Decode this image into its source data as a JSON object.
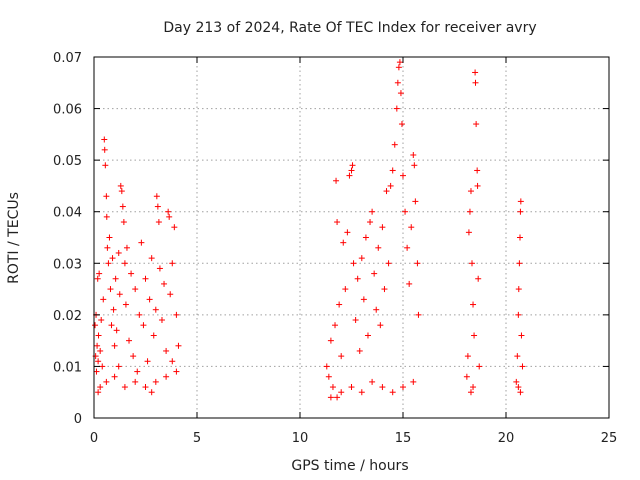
{
  "chart_data": {
    "type": "scatter",
    "title": "Day 213 of 2024, Rate Of TEC Index for receiver avry",
    "xlabel": "GPS time / hours",
    "ylabel": "ROTI / TECUs",
    "xlim": [
      0,
      25
    ],
    "ylim": [
      0,
      0.07
    ],
    "x_ticks": [
      0,
      5,
      10,
      15,
      20,
      25
    ],
    "y_ticks": [
      0,
      0.01,
      0.02,
      0.03,
      0.04,
      0.05,
      0.06,
      0.07
    ],
    "x_tick_labels": [
      "0",
      "5",
      "10",
      "15",
      "20",
      "25"
    ],
    "y_tick_labels": [
      "0",
      "0.01",
      "0.02",
      "0.03",
      "0.04",
      "0.05",
      "0.06",
      "0.07"
    ],
    "grid": true,
    "marker": "+",
    "marker_color": "#ff0000",
    "series": [
      {
        "name": "ROTI",
        "points": [
          [
            0.05,
            0.018
          ],
          [
            0.08,
            0.012
          ],
          [
            0.1,
            0.02
          ],
          [
            0.12,
            0.009
          ],
          [
            0.15,
            0.014
          ],
          [
            0.18,
            0.027
          ],
          [
            0.2,
            0.011
          ],
          [
            0.22,
            0.016
          ],
          [
            0.25,
            0.028
          ],
          [
            0.3,
            0.013
          ],
          [
            0.35,
            0.019
          ],
          [
            0.4,
            0.01
          ],
          [
            0.45,
            0.023
          ],
          [
            0.5,
            0.054
          ],
          [
            0.52,
            0.052
          ],
          [
            0.55,
            0.049
          ],
          [
            0.6,
            0.043
          ],
          [
            0.62,
            0.039
          ],
          [
            0.65,
            0.033
          ],
          [
            0.7,
            0.03
          ],
          [
            0.75,
            0.035
          ],
          [
            0.8,
            0.025
          ],
          [
            0.85,
            0.018
          ],
          [
            0.9,
            0.031
          ],
          [
            0.95,
            0.021
          ],
          [
            1.0,
            0.014
          ],
          [
            1.05,
            0.027
          ],
          [
            1.1,
            0.017
          ],
          [
            1.2,
            0.032
          ],
          [
            1.25,
            0.024
          ],
          [
            1.3,
            0.045
          ],
          [
            1.35,
            0.044
          ],
          [
            1.4,
            0.041
          ],
          [
            1.45,
            0.038
          ],
          [
            1.5,
            0.03
          ],
          [
            1.55,
            0.022
          ],
          [
            1.6,
            0.033
          ],
          [
            1.7,
            0.015
          ],
          [
            1.8,
            0.028
          ],
          [
            1.9,
            0.012
          ],
          [
            2.0,
            0.025
          ],
          [
            2.1,
            0.009
          ],
          [
            2.2,
            0.02
          ],
          [
            2.3,
            0.034
          ],
          [
            2.4,
            0.018
          ],
          [
            2.5,
            0.027
          ],
          [
            2.6,
            0.011
          ],
          [
            2.7,
            0.023
          ],
          [
            2.8,
            0.031
          ],
          [
            2.9,
            0.016
          ],
          [
            3.0,
            0.021
          ],
          [
            3.05,
            0.043
          ],
          [
            3.1,
            0.041
          ],
          [
            3.15,
            0.038
          ],
          [
            3.2,
            0.029
          ],
          [
            3.3,
            0.019
          ],
          [
            3.4,
            0.026
          ],
          [
            3.5,
            0.013
          ],
          [
            3.6,
            0.04
          ],
          [
            3.65,
            0.039
          ],
          [
            3.7,
            0.024
          ],
          [
            3.8,
            0.03
          ],
          [
            3.9,
            0.037
          ],
          [
            4.0,
            0.02
          ],
          [
            4.1,
            0.014
          ],
          [
            0.3,
            0.006
          ],
          [
            0.6,
            0.007
          ],
          [
            1.0,
            0.008
          ],
          [
            1.5,
            0.006
          ],
          [
            2.0,
            0.007
          ],
          [
            2.5,
            0.006
          ],
          [
            3.0,
            0.007
          ],
          [
            3.5,
            0.008
          ],
          [
            4.0,
            0.009
          ],
          [
            0.2,
            0.005
          ],
          [
            1.2,
            0.01
          ],
          [
            2.8,
            0.005
          ],
          [
            3.8,
            0.011
          ],
          [
            11.3,
            0.01
          ],
          [
            11.4,
            0.008
          ],
          [
            11.5,
            0.015
          ],
          [
            11.6,
            0.006
          ],
          [
            11.7,
            0.018
          ],
          [
            11.75,
            0.046
          ],
          [
            11.8,
            0.038
          ],
          [
            11.9,
            0.022
          ],
          [
            12.0,
            0.012
          ],
          [
            12.1,
            0.034
          ],
          [
            12.2,
            0.025
          ],
          [
            12.3,
            0.036
          ],
          [
            12.4,
            0.047
          ],
          [
            12.5,
            0.048
          ],
          [
            12.55,
            0.049
          ],
          [
            12.6,
            0.03
          ],
          [
            12.7,
            0.019
          ],
          [
            12.8,
            0.027
          ],
          [
            12.9,
            0.013
          ],
          [
            13.0,
            0.031
          ],
          [
            13.1,
            0.023
          ],
          [
            13.2,
            0.035
          ],
          [
            13.3,
            0.016
          ],
          [
            13.4,
            0.038
          ],
          [
            13.5,
            0.04
          ],
          [
            13.6,
            0.028
          ],
          [
            13.7,
            0.021
          ],
          [
            13.8,
            0.033
          ],
          [
            13.9,
            0.018
          ],
          [
            14.0,
            0.037
          ],
          [
            14.1,
            0.025
          ],
          [
            14.2,
            0.044
          ],
          [
            14.3,
            0.03
          ],
          [
            14.4,
            0.045
          ],
          [
            14.5,
            0.048
          ],
          [
            14.6,
            0.053
          ],
          [
            14.7,
            0.06
          ],
          [
            14.75,
            0.065
          ],
          [
            14.8,
            0.068
          ],
          [
            14.85,
            0.069
          ],
          [
            14.9,
            0.063
          ],
          [
            14.95,
            0.057
          ],
          [
            15.0,
            0.047
          ],
          [
            15.1,
            0.04
          ],
          [
            15.2,
            0.033
          ],
          [
            15.3,
            0.026
          ],
          [
            15.4,
            0.037
          ],
          [
            15.5,
            0.051
          ],
          [
            15.55,
            0.049
          ],
          [
            15.6,
            0.042
          ],
          [
            15.7,
            0.03
          ],
          [
            15.75,
            0.02
          ],
          [
            11.5,
            0.004
          ],
          [
            12.0,
            0.005
          ],
          [
            12.5,
            0.006
          ],
          [
            13.0,
            0.005
          ],
          [
            13.5,
            0.007
          ],
          [
            14.0,
            0.006
          ],
          [
            14.5,
            0.005
          ],
          [
            15.0,
            0.006
          ],
          [
            15.5,
            0.007
          ],
          [
            11.8,
            0.004
          ],
          [
            18.1,
            0.008
          ],
          [
            18.15,
            0.012
          ],
          [
            18.2,
            0.036
          ],
          [
            18.25,
            0.04
          ],
          [
            18.3,
            0.044
          ],
          [
            18.35,
            0.03
          ],
          [
            18.4,
            0.022
          ],
          [
            18.45,
            0.016
          ],
          [
            18.5,
            0.067
          ],
          [
            18.52,
            0.065
          ],
          [
            18.55,
            0.057
          ],
          [
            18.6,
            0.048
          ],
          [
            18.62,
            0.045
          ],
          [
            18.65,
            0.027
          ],
          [
            18.7,
            0.01
          ],
          [
            18.4,
            0.006
          ],
          [
            18.3,
            0.005
          ],
          [
            20.5,
            0.007
          ],
          [
            20.55,
            0.012
          ],
          [
            20.6,
            0.02
          ],
          [
            20.62,
            0.025
          ],
          [
            20.65,
            0.03
          ],
          [
            20.68,
            0.035
          ],
          [
            20.7,
            0.04
          ],
          [
            20.72,
            0.042
          ],
          [
            20.75,
            0.016
          ],
          [
            20.8,
            0.01
          ],
          [
            20.6,
            0.006
          ],
          [
            20.7,
            0.005
          ]
        ]
      }
    ]
  }
}
